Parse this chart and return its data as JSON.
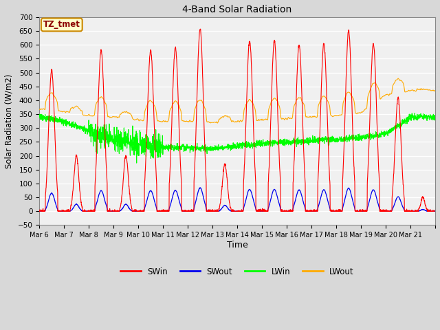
{
  "title": "4-Band Solar Radiation",
  "xlabel": "Time",
  "ylabel": "Solar Radiation (W/m2)",
  "ylim": [
    -50,
    700
  ],
  "yticks": [
    -50,
    0,
    50,
    100,
    150,
    200,
    250,
    300,
    350,
    400,
    450,
    500,
    550,
    600,
    650,
    700
  ],
  "x_tick_labels": [
    "Mar 6",
    "Mar 7",
    "Mar 8",
    "Mar 9",
    "Mar 10",
    "Mar 11",
    "Mar 12",
    "Mar 13",
    "Mar 14",
    "Mar 15",
    "Mar 16",
    "Mar 17",
    "Mar 18",
    "Mar 19",
    "Mar 20",
    "Mar 21"
  ],
  "label_box": "TZ_tmet",
  "colors": {
    "SWin": "#ff0000",
    "SWout": "#0000ee",
    "LWin": "#00ff00",
    "LWout": "#ffaa00"
  },
  "legend_labels": [
    "SWin",
    "SWout",
    "LWin",
    "LWout"
  ],
  "fig_bg_color": "#d8d8d8",
  "plot_bg_color": "#f0f0f0",
  "grid_color": "#ffffff",
  "n_days": 16,
  "pts_per_day": 144
}
